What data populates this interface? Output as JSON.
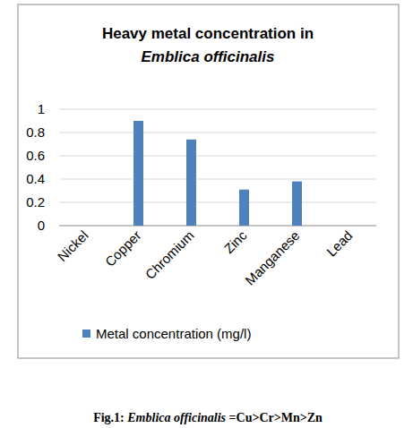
{
  "chart_data": {
    "type": "bar",
    "title": "Heavy metal concentration in Emblica officinalis",
    "categories": [
      "Nickel",
      "Copper",
      "Chromium",
      "Zinc",
      "Manganese",
      "Lead"
    ],
    "series": [
      {
        "name": "Metal concentration (mg/l)",
        "color": "#4f81bd",
        "values": [
          0,
          0.9,
          0.74,
          0.31,
          0.38,
          0
        ]
      }
    ],
    "ylim": [
      0,
      1
    ],
    "yticks": [
      0,
      0.2,
      0.4,
      0.6,
      0.8,
      1
    ],
    "grid": true,
    "legend": "bottom",
    "annotations": [
      "Fig.1: Emblica officinalis =Cu>Cr>Mn>Zn"
    ]
  }
}
